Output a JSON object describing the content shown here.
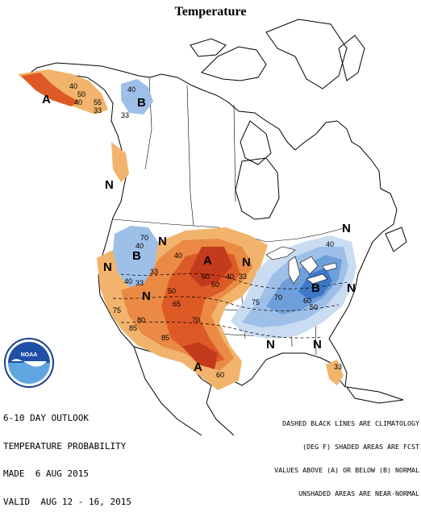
{
  "title": "Temperature",
  "outlook": {
    "line1": "6-10 DAY OUTLOOK",
    "line2": "TEMPERATURE PROBABILITY",
    "line3": "MADE  6 AUG 2015",
    "line4": "VALID  AUG 12 - 16, 2015"
  },
  "legend": {
    "line1": "DASHED BLACK LINES ARE CLIMATOLOGY",
    "line2": "(DEG F) SHADED AREAS ARE FCST",
    "line3": "VALUES ABOVE (A) OR BELOW (B) NORMAL",
    "line4": "UNSHADED AREAS ARE NEAR-NORMAL"
  },
  "logo": {
    "text": "NOAA"
  },
  "colors": {
    "above_33": "#f2b36c",
    "above_40": "#ea8a45",
    "above_50": "#dd5a26",
    "above_60": "#c43a1c",
    "below_33": "#c9dcf2",
    "below_40": "#9ec0e8",
    "below_50": "#6f9fdb",
    "below_60": "#3f78c6"
  },
  "map_labels": {
    "A": "A",
    "B": "B",
    "N": "N",
    "v33": "33",
    "v40": "40",
    "v50": "50",
    "v55": "55",
    "v60": "60",
    "v65": "65",
    "v70": "70",
    "v75": "75",
    "v80": "80",
    "v85": "85"
  }
}
